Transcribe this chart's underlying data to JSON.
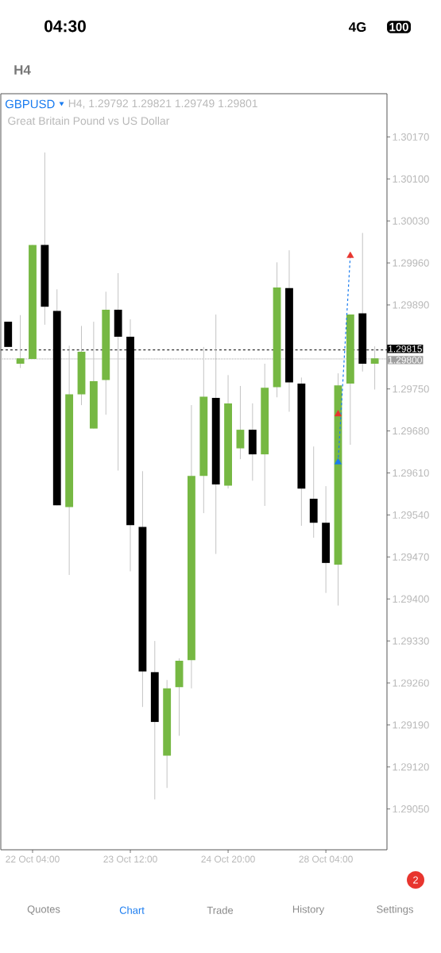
{
  "chart_data": {
    "type": "candlestick",
    "title": "GBPUSD",
    "subtitle": "H4, 1.29792 1.29821 1.29749 1.29801",
    "annotations": [
      "Great Britain Pound vs US Dollar",
      "04:30",
      "4G",
      "100",
      "H4",
      "Quotes",
      "Chart",
      "Trade",
      "History",
      "Settings",
      "2"
    ],
    "categories": [
      null,
      null,
      "22 Oct 04:00",
      null,
      null,
      null,
      null,
      null,
      null,
      null,
      "23 Oct 12:00",
      null,
      null,
      null,
      null,
      null,
      null,
      null,
      "24 Oct 20:00",
      null,
      null,
      null,
      null,
      null,
      null,
      null,
      "28 Oct 04:00",
      null,
      null,
      null,
      null
    ],
    "ohlc": [
      [
        1.29862,
        1.29862,
        1.2982,
        1.2982
      ],
      [
        1.29792,
        1.29873,
        1.29785,
        1.29801
      ],
      [
        1.298,
        1.2999,
        1.298,
        1.2999
      ],
      [
        1.2999,
        1.30144,
        1.29857,
        1.29887
      ],
      [
        1.2988,
        1.29916,
        1.29556,
        1.29556
      ],
      [
        1.29553,
        1.29822,
        1.2944,
        1.29741
      ],
      [
        1.29741,
        1.29855,
        1.29723,
        1.29812
      ],
      [
        1.29684,
        1.29862,
        1.29684,
        1.29763
      ],
      [
        1.29765,
        1.29912,
        1.29707,
        1.29882
      ],
      [
        1.29882,
        1.29943,
        1.29614,
        1.29837
      ],
      [
        1.29837,
        1.29866,
        1.29446,
        1.29523
      ],
      [
        1.2952,
        1.29613,
        1.2922,
        1.29279
      ],
      [
        1.29278,
        1.2933,
        1.29066,
        1.29195
      ],
      [
        1.29139,
        1.29265,
        1.29085,
        1.29251
      ],
      [
        1.29253,
        1.29301,
        1.29172,
        1.29297
      ],
      [
        1.29298,
        1.29723,
        1.29251,
        1.29605
      ],
      [
        1.29605,
        1.2982,
        1.29543,
        1.29737
      ],
      [
        1.29735,
        1.29874,
        1.29475,
        1.29591
      ],
      [
        1.29589,
        1.29773,
        1.29584,
        1.29726
      ],
      [
        1.29651,
        1.29755,
        1.29633,
        1.29682
      ],
      [
        1.29682,
        1.29726,
        1.29597,
        1.29641
      ],
      [
        1.29641,
        1.29792,
        1.29555,
        1.29752
      ],
      [
        1.29753,
        1.29961,
        1.29736,
        1.29919
      ],
      [
        1.29918,
        1.29981,
        1.29712,
        1.29761
      ],
      [
        1.29759,
        1.29769,
        1.29522,
        1.29584
      ],
      [
        1.29567,
        1.29654,
        1.29502,
        1.29527
      ],
      [
        1.29527,
        1.29588,
        1.2941,
        1.2946
      ],
      [
        1.29457,
        1.29776,
        1.29389,
        1.29756
      ],
      [
        1.29759,
        1.29874,
        1.29657,
        1.29874
      ],
      [
        1.29876,
        1.3001,
        1.29779,
        1.29792
      ],
      [
        1.29792,
        1.29821,
        1.29749,
        1.29801
      ]
    ],
    "colors": [
      "#000000",
      "#76b843",
      "#76b843",
      "#000000",
      "#000000",
      "#76b843",
      "#76b843",
      "#76b843",
      "#76b843",
      "#000000",
      "#000000",
      "#000000",
      "#000000",
      "#76b843",
      "#76b843",
      "#76b843",
      "#76b843",
      "#000000",
      "#76b843",
      "#76b843",
      "#000000",
      "#76b843",
      "#76b843",
      "#000000",
      "#000000",
      "#000000",
      "#000000",
      "#76b843",
      "#76b843",
      "#000000",
      "#76b843"
    ],
    "series": [
      {
        "type": "line",
        "color": "#1a7cf0",
        "line_style": "dashed",
        "marker": "none",
        "values": [
          null,
          null,
          null,
          null,
          null,
          null,
          null,
          null,
          null,
          null,
          null,
          null,
          null,
          null,
          null,
          null,
          null,
          null,
          null,
          null,
          null,
          null,
          null,
          null,
          null,
          null,
          null,
          1.29628,
          1.29972,
          null,
          null
        ]
      },
      {
        "type": "scatter",
        "color": "#1a7cf0",
        "marker": "triangle",
        "values": [
          null,
          null,
          null,
          null,
          null,
          null,
          null,
          null,
          null,
          null,
          null,
          null,
          null,
          null,
          null,
          null,
          null,
          null,
          null,
          null,
          null,
          null,
          null,
          null,
          null,
          null,
          null,
          1.29628,
          null,
          null,
          null
        ]
      },
      {
        "type": "scatter",
        "color": "#e8352e",
        "marker": "triangle",
        "values": [
          null,
          null,
          null,
          null,
          null,
          null,
          null,
          null,
          null,
          null,
          null,
          null,
          null,
          null,
          null,
          null,
          null,
          null,
          null,
          null,
          null,
          null,
          null,
          null,
          null,
          null,
          null,
          1.29708,
          1.29972,
          null,
          null
        ]
      }
    ],
    "ylim": [
      1.28982,
      1.30242
    ],
    "yticks": [
      {
        "value": 1.2905,
        "label": "1.29050"
      },
      {
        "value": 1.2912,
        "label": "1.29120"
      },
      {
        "value": 1.2919,
        "label": "1.29190"
      },
      {
        "value": 1.2926,
        "label": "1.29260"
      },
      {
        "value": 1.2933,
        "label": "1.29330"
      },
      {
        "value": 1.294,
        "label": "1.29400"
      },
      {
        "value": 1.2947,
        "label": "1.29470"
      },
      {
        "value": 1.2954,
        "label": "1.29540"
      },
      {
        "value": 1.2961,
        "label": "1.29610"
      },
      {
        "value": 1.2968,
        "label": "1.29680"
      },
      {
        "value": 1.2975,
        "label": "1.29750"
      },
      {
        "value": 1.2989,
        "label": "1.29890"
      },
      {
        "value": 1.2996,
        "label": "1.29960"
      },
      {
        "value": 1.3003,
        "label": "1.30030"
      },
      {
        "value": 1.301,
        "label": "1.30100"
      },
      {
        "value": 1.3017,
        "label": "1.30170"
      }
    ],
    "ref_lines": [
      {
        "axis": "y",
        "value": 1.29815,
        "label": "1.29815",
        "color": "#000000",
        "line_style": "dashed"
      },
      {
        "axis": "y",
        "value": 1.298,
        "label": "1.29800",
        "color": "#a0a0a0",
        "line_style": "dotted"
      }
    ]
  }
}
